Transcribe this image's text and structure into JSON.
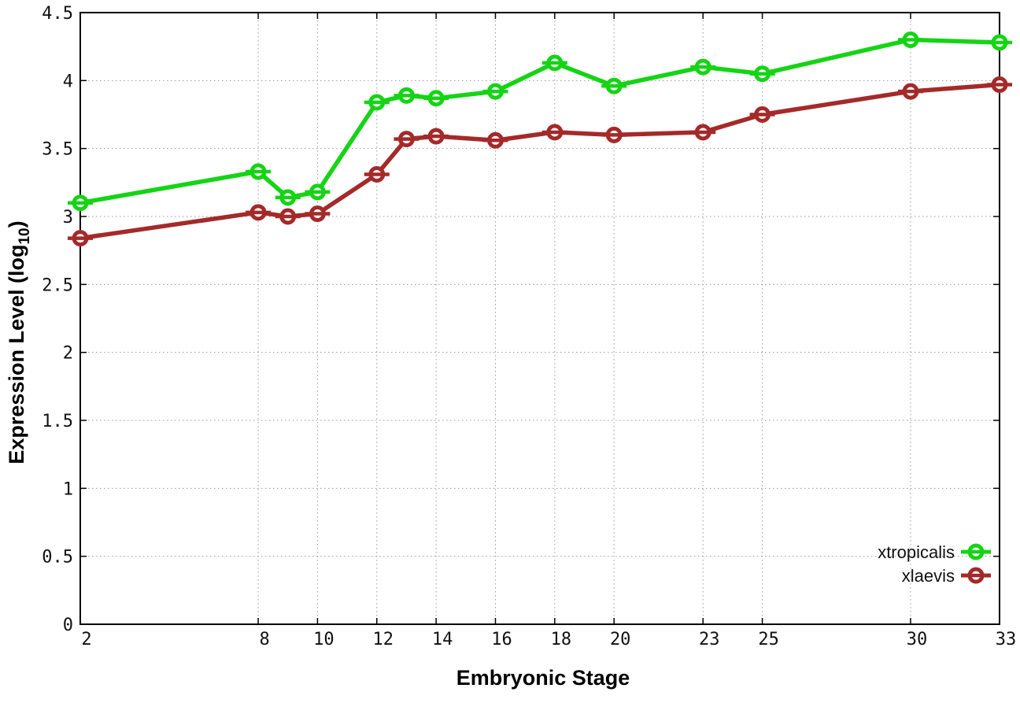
{
  "figure": {
    "background": "#ffffff",
    "grid_color": "#9a9a9a",
    "border_color": "#000000"
  },
  "chart_data": {
    "type": "line",
    "title": "",
    "xlabel": "Embryonic Stage",
    "ylabel": "Expression Level (log10)",
    "ylabel_parts": {
      "main": "Expression Level (log",
      "sub": "10",
      "end": ")"
    },
    "grid": true,
    "legend_position": "inside-bottom-right",
    "marker": "open-circle-with-errorbar",
    "xlim": [
      2,
      33
    ],
    "ylim": [
      0,
      4.5
    ],
    "x": [
      2,
      8,
      9,
      10,
      12,
      13,
      14,
      16,
      18,
      20,
      23,
      25,
      30,
      33
    ],
    "x_ticks": [
      {
        "label": "2",
        "value": 2
      },
      {
        "label": "8",
        "value": 8
      },
      {
        "label": "10",
        "value": 10
      },
      {
        "label": "12",
        "value": 12
      },
      {
        "label": "14",
        "value": 14
      },
      {
        "label": "16",
        "value": 16
      },
      {
        "label": "18",
        "value": 18
      },
      {
        "label": "20",
        "value": 20
      },
      {
        "label": "23",
        "value": 23
      },
      {
        "label": "25",
        "value": 25
      },
      {
        "label": "30",
        "value": 30
      },
      {
        "label": "33",
        "value": 33
      }
    ],
    "y_ticks": [
      {
        "label": "0",
        "value": 0
      },
      {
        "label": "0.5",
        "value": 0.5
      },
      {
        "label": "1",
        "value": 1
      },
      {
        "label": "1.5",
        "value": 1.5
      },
      {
        "label": "2",
        "value": 2
      },
      {
        "label": "2.5",
        "value": 2.5
      },
      {
        "label": "3",
        "value": 3
      },
      {
        "label": "3.5",
        "value": 3.5
      },
      {
        "label": "4",
        "value": 4
      },
      {
        "label": "4.5",
        "value": 4.5
      }
    ],
    "series": [
      {
        "name": "xtropicalis",
        "color": "#15d415",
        "values": [
          3.1,
          3.33,
          3.14,
          3.18,
          3.84,
          3.89,
          3.87,
          3.92,
          4.13,
          3.96,
          4.1,
          4.05,
          4.3,
          4.28
        ]
      },
      {
        "name": "xlaevis",
        "color": "#a42a2a",
        "values": [
          2.84,
          3.03,
          3.0,
          3.02,
          3.31,
          3.57,
          3.59,
          3.56,
          3.62,
          3.6,
          3.62,
          3.75,
          3.92,
          3.97
        ]
      }
    ]
  }
}
